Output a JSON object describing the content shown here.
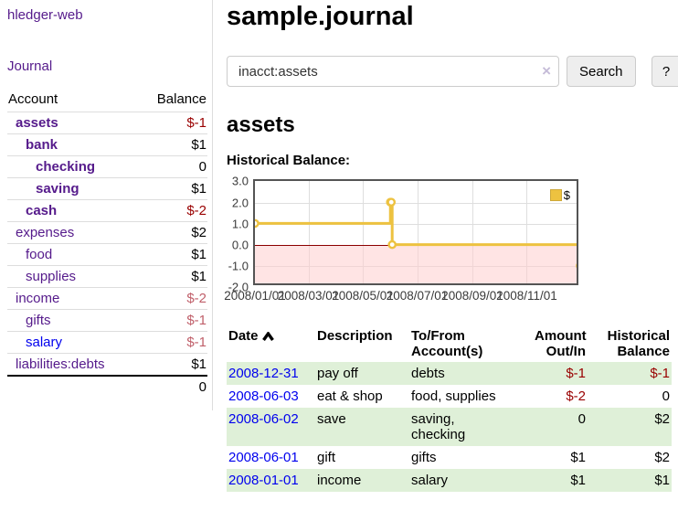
{
  "app": {
    "title": "hledger-web"
  },
  "sidebar": {
    "journal_link": "Journal",
    "header": {
      "account": "Account",
      "balance": "Balance"
    },
    "accounts": [
      {
        "name": "assets",
        "depth": 0,
        "bold": true,
        "balance": "$-1"
      },
      {
        "name": "bank",
        "depth": 1,
        "bold": true,
        "balance": "$1"
      },
      {
        "name": "checking",
        "depth": 2,
        "bold": true,
        "balance": "0"
      },
      {
        "name": "saving",
        "depth": 2,
        "bold": true,
        "balance": "$1"
      },
      {
        "name": "cash",
        "depth": 1,
        "bold": true,
        "balance": "$-2"
      },
      {
        "name": "expenses",
        "depth": 0,
        "bold": false,
        "balance": "$2"
      },
      {
        "name": "food",
        "depth": 1,
        "bold": false,
        "balance": "$1"
      },
      {
        "name": "supplies",
        "depth": 1,
        "bold": false,
        "balance": "$1"
      },
      {
        "name": "income",
        "depth": 0,
        "bold": false,
        "balance": "$-2"
      },
      {
        "name": "gifts",
        "depth": 1,
        "bold": false,
        "balance": "$-1"
      },
      {
        "name": "salary",
        "depth": 1,
        "bold": false,
        "balance": "$-1",
        "unvisited": true
      },
      {
        "name": "liabilities:debts",
        "depth": 0,
        "bold": false,
        "balance": "$1"
      }
    ],
    "total": "0"
  },
  "main": {
    "title": "sample.journal",
    "search": {
      "value": "inacct:assets",
      "clear_icon": "×",
      "button_label": "Search",
      "help_label": "?"
    },
    "account_heading": "assets",
    "chart_title": "Historical Balance:"
  },
  "chart_data": {
    "type": "line",
    "step": true,
    "title": "Historical Balance",
    "ylim": [
      -2,
      3
    ],
    "yticks": [
      "3.0",
      "2.0",
      "1.0",
      "0.0",
      "-1.0",
      "-2.0"
    ],
    "ytick_values": [
      3,
      2,
      1,
      0,
      -1,
      -2
    ],
    "xticks": [
      "2008/01/01",
      "2008/03/01",
      "2008/05/01",
      "2008/07/01",
      "2008/09/01",
      "2008/11/01"
    ],
    "x_start": "2008-01-01",
    "x_end": "2008-12-31",
    "legend": [
      {
        "name": "$",
        "color": "#edc240"
      }
    ],
    "series": [
      {
        "name": "$",
        "points": [
          {
            "x": "2008-01-01",
            "y": 1
          },
          {
            "x": "2008-06-01",
            "y": 2
          },
          {
            "x": "2008-06-02",
            "y": 2
          },
          {
            "x": "2008-06-03",
            "y": 0
          },
          {
            "x": "2008-12-31",
            "y": -1
          }
        ]
      }
    ],
    "grid": true,
    "negative_region": true,
    "legend_position": "top-right"
  },
  "register": {
    "headers": {
      "date": "Date",
      "description": "Description",
      "accounts": "To/From\nAccount(s)",
      "amount": "Amount\nOut/In",
      "balance": "Historical\nBalance"
    },
    "rows": [
      {
        "date": "2008-12-31",
        "description": "pay off",
        "accounts": "debts",
        "amount": "$-1",
        "balance": "$-1"
      },
      {
        "date": "2008-06-03",
        "description": "eat & shop",
        "accounts": "food, supplies",
        "amount": "$-2",
        "balance": "0"
      },
      {
        "date": "2008-06-02",
        "description": "save",
        "accounts": "saving,\nchecking",
        "amount": "0",
        "balance": "$2"
      },
      {
        "date": "2008-06-01",
        "description": "gift",
        "accounts": "gifts",
        "amount": "$1",
        "balance": "$2"
      },
      {
        "date": "2008-01-01",
        "description": "income",
        "accounts": "salary",
        "amount": "$1",
        "balance": "$1"
      }
    ]
  },
  "colors": {
    "link_visited": "#551a8b",
    "link_unvisited": "#0000ee",
    "negative_strong": "#990000",
    "negative_soft": "#c05f6a",
    "row_highlight": "#dff0d8",
    "series_yellow": "#edc240",
    "zero_line": "#8b0000",
    "negative_region": "rgba(255,206,206,0.55)"
  }
}
